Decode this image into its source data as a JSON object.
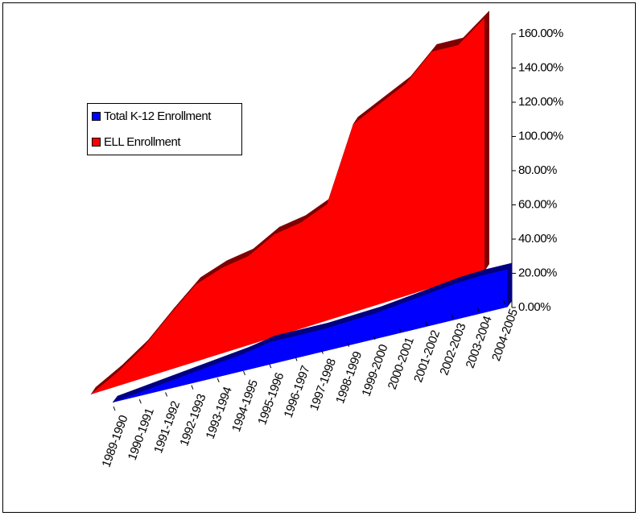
{
  "chart_data": {
    "type": "area3d",
    "categories": [
      "1989-1990",
      "1990-1991",
      "1991-1992",
      "1992-1993",
      "1993-1994",
      "1994-1995",
      "1995-1996",
      "1996-1997",
      "1997-1998",
      "1998-1999",
      "1999-2000",
      "2000-2001",
      "2001-2002",
      "2002-2003",
      "2003-2004",
      "2004-2005"
    ],
    "series": [
      {
        "name": "Total K-12 Enrollment",
        "color": "#0000ff",
        "dark": "#000080",
        "values": [
          0,
          2,
          4,
          6,
          8,
          10,
          13,
          13,
          13,
          14,
          15,
          17,
          19,
          21,
          22,
          22
        ]
      },
      {
        "name": "ELL Enrollment",
        "color": "#ff0000",
        "dark": "#800000",
        "values": [
          0,
          8,
          18,
          32,
          45,
          50,
          52,
          60,
          62,
          68,
          110,
          117,
          124,
          138,
          137,
          148
        ]
      }
    ],
    "ylim": [
      0,
      160
    ],
    "yticks": [
      {
        "value": 0,
        "label": "0.00%"
      },
      {
        "value": 20,
        "label": "20.00%"
      },
      {
        "value": 40,
        "label": "40.00%"
      },
      {
        "value": 60,
        "label": "60.00%"
      },
      {
        "value": 80,
        "label": "80.00%"
      },
      {
        "value": 100,
        "label": "100.00%"
      },
      {
        "value": 120,
        "label": "120.00%"
      },
      {
        "value": 140,
        "label": "140.00%"
      },
      {
        "value": 160,
        "label": "160.00%"
      }
    ],
    "legend": "left"
  }
}
